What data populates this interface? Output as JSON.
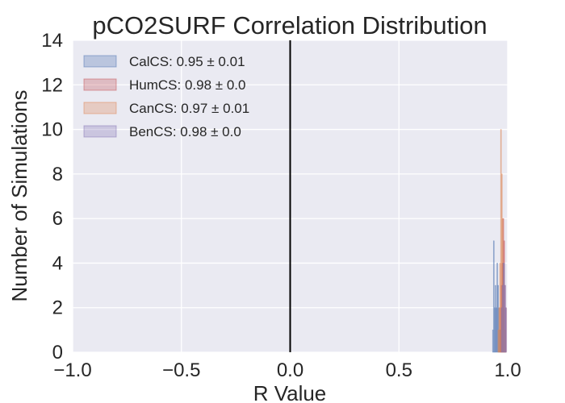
{
  "chart_data": {
    "type": "bar",
    "title": "pCO2SURF Correlation Distribution",
    "xlabel": "R Value",
    "ylabel": "Number of Simulations",
    "xlim": [
      -1.0,
      1.0
    ],
    "ylim": [
      0,
      14
    ],
    "xticks": [
      "−1.0",
      "−0.5",
      "0.0",
      "0.5",
      "1.0"
    ],
    "xtick_values": [
      -1.0,
      -0.5,
      0.0,
      0.5,
      1.0
    ],
    "yticks": [
      "0",
      "2",
      "4",
      "6",
      "8",
      "10",
      "12",
      "14"
    ],
    "ytick_values": [
      0,
      2,
      4,
      6,
      8,
      10,
      12,
      14
    ],
    "grid": true,
    "vertical_line_x": 0.0,
    "legend_position": "upper-left",
    "series": [
      {
        "name": "CalCS: 0.95 ± 0.01",
        "color": "#4c72b0",
        "bins": [
          [
            0.93,
            0.934,
            1
          ],
          [
            0.934,
            0.938,
            5
          ],
          [
            0.938,
            0.942,
            2
          ],
          [
            0.942,
            0.946,
            3
          ],
          [
            0.946,
            0.95,
            2
          ],
          [
            0.95,
            0.954,
            4
          ],
          [
            0.954,
            0.958,
            3
          ],
          [
            0.958,
            0.962,
            2
          ],
          [
            0.962,
            0.966,
            1
          ],
          [
            0.966,
            0.97,
            1
          ]
        ]
      },
      {
        "name": "HumCS: 0.98 ± 0.0",
        "color": "#c44e52",
        "bins": [
          [
            0.966,
            0.97,
            2
          ],
          [
            0.97,
            0.974,
            3
          ],
          [
            0.974,
            0.978,
            4
          ],
          [
            0.978,
            0.982,
            6
          ],
          [
            0.982,
            0.986,
            5
          ],
          [
            0.986,
            0.99,
            3
          ],
          [
            0.99,
            0.994,
            2
          ]
        ]
      },
      {
        "name": "CanCS: 0.97 ± 0.01",
        "color": "#dd8452",
        "bins": [
          [
            0.955,
            0.959,
            1
          ],
          [
            0.959,
            0.963,
            2
          ],
          [
            0.963,
            0.967,
            4
          ],
          [
            0.967,
            0.971,
            10
          ],
          [
            0.971,
            0.975,
            8
          ],
          [
            0.975,
            0.979,
            6
          ],
          [
            0.979,
            0.983,
            4
          ],
          [
            0.983,
            0.987,
            2
          ],
          [
            0.987,
            0.991,
            1
          ]
        ]
      },
      {
        "name": "BenCS: 0.98 ± 0.0",
        "color": "#8172b2",
        "bins": [
          [
            0.97,
            0.974,
            2
          ],
          [
            0.974,
            0.978,
            3
          ],
          [
            0.978,
            0.982,
            4
          ],
          [
            0.982,
            0.986,
            4
          ],
          [
            0.986,
            0.99,
            3
          ],
          [
            0.99,
            0.994,
            2
          ]
        ]
      }
    ]
  }
}
